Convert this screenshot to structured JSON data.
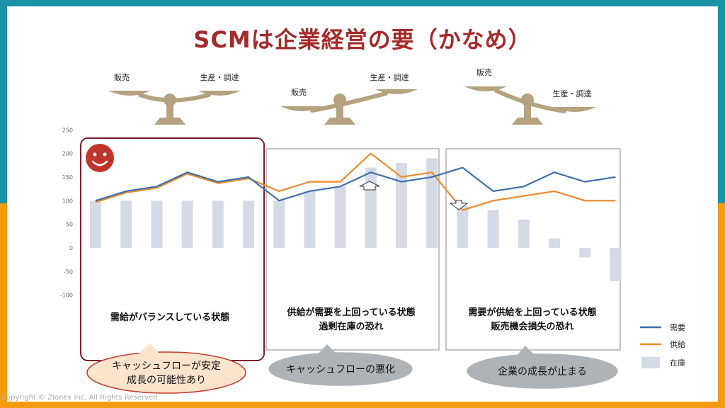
{
  "page": {
    "title": "SCMは企業経営の要（かなめ）",
    "copyright": "Copyright © Zionex Inc. All Rights Reserved."
  },
  "colors": {
    "top_band": "#1b93a6",
    "bottom_band": "#f39c12",
    "title": "#a52a2a",
    "demand": "#3f6fae",
    "supply": "#ee8a2a",
    "inventory": "#d5dbe6",
    "scale": "#b5a27e",
    "smiley": "#c0352b"
  },
  "scales": [
    {
      "left_label": "販売",
      "right_label": "生産・調達",
      "tilt": "balanced"
    },
    {
      "left_label": "販売",
      "right_label": "生産・調達",
      "tilt": "right-heavy"
    },
    {
      "left_label": "販売",
      "right_label": "生産・調達",
      "tilt": "left-heavy"
    }
  ],
  "panels": [
    {
      "caption_lines": [
        "需給がバランスしている状態"
      ],
      "bubble_lines": [
        "キャッシュフローが安定",
        "成長の可能性あり"
      ],
      "bubble_style": "positive"
    },
    {
      "caption_lines": [
        "供給が需要を上回っている状態",
        "過剰在庫の恐れ"
      ],
      "bubble_lines": [
        "キャッシュフローの悪化"
      ],
      "bubble_style": "negative"
    },
    {
      "caption_lines": [
        "需要が供給を上回っている状態",
        "販売機会損失の恐れ"
      ],
      "bubble_lines": [
        "企業の成長が止まる"
      ],
      "bubble_style": "negative"
    }
  ],
  "chart_data": {
    "type": "line",
    "title": "",
    "xlabel": "",
    "ylabel": "",
    "x": [
      1,
      2,
      3,
      4,
      5,
      6,
      7,
      8,
      9,
      10,
      11,
      12,
      13,
      14,
      15,
      16,
      17,
      18
    ],
    "ylim": [
      -100,
      250
    ],
    "yticks": [
      250,
      200,
      150,
      100,
      50,
      0,
      -50,
      -100
    ],
    "grid": false,
    "legend": {
      "position": "bottom-right",
      "entries": [
        "需要",
        "供給",
        "在庫"
      ]
    },
    "series": [
      {
        "name": "需要",
        "type": "line",
        "values": [
          100,
          120,
          130,
          160,
          140,
          150,
          100,
          120,
          130,
          160,
          140,
          150,
          170,
          120,
          130,
          160,
          140,
          150
        ]
      },
      {
        "name": "供給",
        "type": "line",
        "values": [
          97,
          117,
          127,
          157,
          137,
          147,
          120,
          140,
          140,
          200,
          150,
          160,
          80,
          100,
          110,
          120,
          100,
          100
        ]
      },
      {
        "name": "在庫",
        "type": "bar",
        "values": [
          100,
          100,
          100,
          100,
          100,
          100,
          100,
          120,
          130,
          170,
          180,
          190,
          90,
          80,
          60,
          20,
          -20,
          -70
        ]
      }
    ]
  }
}
